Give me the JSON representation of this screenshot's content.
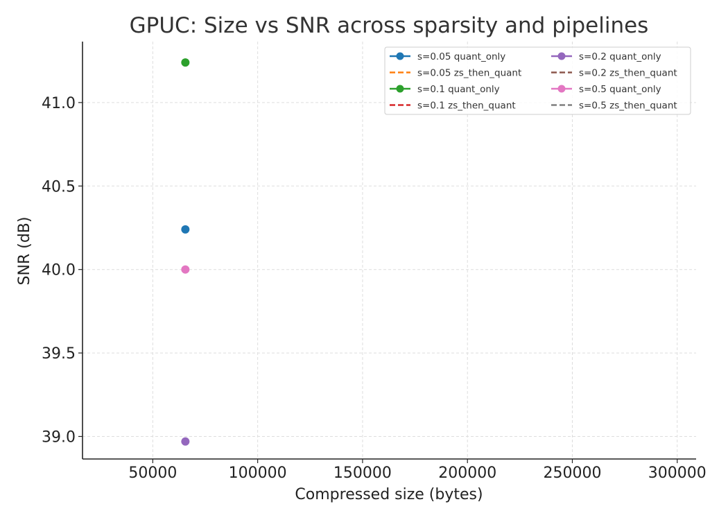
{
  "chart_data": {
    "type": "scatter",
    "title": "GPUC: Size vs SNR across sparsity and pipelines",
    "xlabel": "Compressed size (bytes)",
    "ylabel": "SNR (dB)",
    "xlim": [
      16500,
      309000
    ],
    "ylim": [
      38.865,
      41.365
    ],
    "xticks": [
      50000,
      100000,
      150000,
      200000,
      250000,
      300000
    ],
    "yticks": [
      39.0,
      39.5,
      40.0,
      40.5,
      41.0
    ],
    "grid": true,
    "legend_position": "top-right",
    "legend_columns": 2,
    "series": [
      {
        "name": "s=0.05 quant_only",
        "color": "#1f77b4",
        "style": "solid-marker",
        "points": [
          {
            "x": 65536,
            "y": 40.24
          }
        ]
      },
      {
        "name": "s=0.05 zs_then_quant",
        "color": "#ff7f0e",
        "style": "dashed",
        "points": []
      },
      {
        "name": "s=0.1 quant_only",
        "color": "#2ca02c",
        "style": "solid-marker",
        "points": [
          {
            "x": 65536,
            "y": 41.24
          }
        ]
      },
      {
        "name": "s=0.1 zs_then_quant",
        "color": "#d62728",
        "style": "dashed",
        "points": []
      },
      {
        "name": "s=0.2 quant_only",
        "color": "#9467bd",
        "style": "solid-marker",
        "points": [
          {
            "x": 65536,
            "y": 38.97
          }
        ]
      },
      {
        "name": "s=0.2 zs_then_quant",
        "color": "#8c564b",
        "style": "dashed",
        "points": []
      },
      {
        "name": "s=0.5 quant_only",
        "color": "#e377c2",
        "style": "solid-marker",
        "points": [
          {
            "x": 65536,
            "y": 40.0
          }
        ]
      },
      {
        "name": "s=0.5 zs_then_quant",
        "color": "#7f7f7f",
        "style": "dashed",
        "points": []
      }
    ]
  }
}
